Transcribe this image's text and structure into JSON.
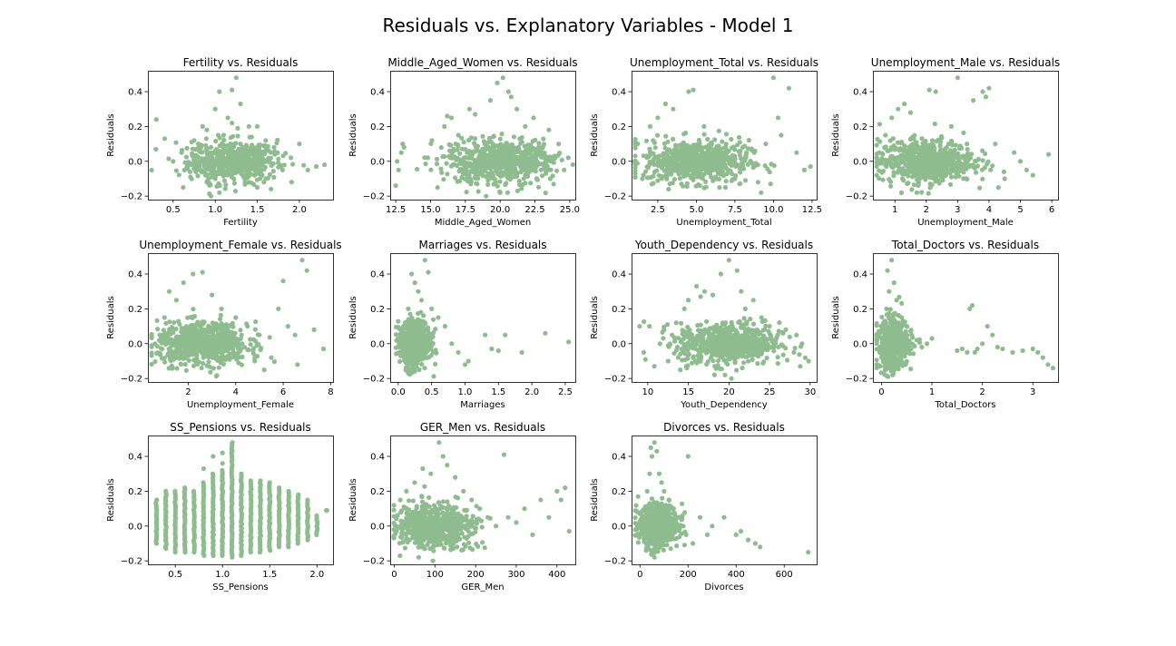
{
  "figure": {
    "suptitle": "Residuals vs. Explanatory Variables - Model 1"
  },
  "style": {
    "point_color": "#8fbc8f",
    "axis_color": "#000000"
  },
  "chart_data": [
    {
      "type": "scatter",
      "title": "Fertility vs. Residuals",
      "xlabel": "Fertility",
      "ylabel": "Residuals",
      "xlim": [
        0.2,
        2.4
      ],
      "ylim": [
        -0.22,
        0.52
      ],
      "xticks": [
        0.5,
        1.0,
        1.5,
        2.0
      ],
      "xtick_labels": [
        "0.5",
        "1.0",
        "1.5",
        "2.0"
      ],
      "yticks": [
        -0.2,
        0.0,
        0.2,
        0.4
      ],
      "ytick_labels": [
        "−0.2",
        "0.0",
        "0.2",
        "0.4"
      ],
      "x": [
        0.3,
        0.4,
        0.5,
        0.6,
        0.62,
        0.7,
        0.75,
        0.8,
        0.85,
        0.9,
        0.95,
        1.0,
        1.05,
        1.1,
        1.15,
        1.2,
        1.25,
        1.3,
        1.35,
        1.4,
        1.45,
        1.5,
        1.55,
        1.6,
        1.7,
        1.8,
        1.9,
        2.0,
        2.1,
        2.2,
        2.3,
        1.0,
        1.1,
        1.2,
        1.25,
        0.9,
        1.3,
        1.15,
        1.05,
        1.4,
        0.8,
        1.6,
        1.5,
        0.95,
        1.35
      ],
      "y": [
        0.24,
        0.13,
        0.0,
        0.05,
        -0.15,
        -0.06,
        0.12,
        0.0,
        0.2,
        -0.12,
        0.08,
        0.3,
        -0.18,
        0.15,
        0.25,
        0.41,
        0.48,
        0.1,
        -0.08,
        0.2,
        0.0,
        -0.15,
        0.05,
        -0.1,
        0.08,
        -0.05,
        0.02,
        0.1,
        -0.05,
        -0.03,
        -0.02,
        -0.1,
        0.05,
        0.22,
        -0.05,
        0.18,
        0.33,
        0.0,
        0.4,
        -0.12,
        0.1,
        0.12,
        0.2,
        -0.2,
        0.03
      ],
      "cloud": {
        "x_center": 1.2,
        "x_spread": 0.26,
        "y_center": 0.0,
        "y_spread": 0.06,
        "n": 550
      }
    },
    {
      "type": "scatter",
      "title": "Middle_Aged_Women vs. Residuals",
      "xlabel": "Middle_Aged_Women",
      "ylabel": "Residuals",
      "xlim": [
        12.1,
        25.4
      ],
      "ylim": [
        -0.22,
        0.52
      ],
      "xticks": [
        12.5,
        15.0,
        17.5,
        20.0,
        22.5,
        25.0
      ],
      "xtick_labels": [
        "12.5",
        "15.0",
        "17.5",
        "20.0",
        "22.5",
        "25.0"
      ],
      "yticks": [
        -0.2,
        0.0,
        0.2,
        0.4
      ],
      "ytick_labels": [
        "−0.2",
        "0.0",
        "0.2",
        "0.4"
      ],
      "x": [
        12.5,
        12.7,
        12.9,
        13.1,
        12.6,
        13.0,
        14.8,
        15.1,
        15.5,
        16.0,
        16.5,
        17.0,
        17.8,
        18.2,
        18.9,
        19.3,
        19.8,
        20.2,
        20.6,
        21.2,
        21.8,
        22.4,
        23.0,
        23.6,
        24.2,
        24.6,
        24.9,
        20.0,
        19.0,
        20.8,
        16.2,
        23.5
      ],
      "y": [
        -0.14,
        -0.05,
        0.05,
        0.08,
        0.0,
        0.1,
        0.02,
        0.12,
        -0.15,
        0.2,
        0.25,
        0.15,
        0.3,
        0.27,
        0.1,
        0.35,
        0.45,
        0.48,
        0.4,
        0.3,
        0.2,
        0.25,
        0.05,
        -0.1,
        0.1,
        -0.05,
        0.02,
        -0.18,
        -0.2,
        0.37,
        0.26,
        0.18
      ],
      "cloud": {
        "x_center": 20.0,
        "x_spread": 1.9,
        "y_center": 0.0,
        "y_spread": 0.06,
        "n": 650
      }
    },
    {
      "type": "scatter",
      "title": "Unemployment_Total vs. Residuals",
      "xlabel": "Unemployment_Total",
      "ylabel": "Residuals",
      "xlim": [
        0.8,
        12.8
      ],
      "ylim": [
        -0.22,
        0.52
      ],
      "xticks": [
        2.5,
        5.0,
        7.5,
        10.0,
        12.5
      ],
      "xtick_labels": [
        "2.5",
        "5.0",
        "7.5",
        "10.0",
        "12.5"
      ],
      "yticks": [
        -0.2,
        0.0,
        0.2,
        0.4
      ],
      "ytick_labels": [
        "−0.2",
        "0.0",
        "0.2",
        "0.4"
      ],
      "x": [
        1.0,
        1.2,
        1.5,
        2.0,
        2.5,
        3.0,
        3.5,
        4.5,
        4.8,
        5.5,
        6.0,
        6.5,
        7.0,
        7.5,
        8.0,
        8.5,
        9.0,
        9.5,
        10.0,
        10.5,
        11.0,
        11.5,
        12.0,
        12.4,
        10.3,
        9.2,
        8.8,
        7.8,
        3.2,
        2.2
      ],
      "y": [
        0.0,
        0.1,
        -0.1,
        0.2,
        0.25,
        0.33,
        0.3,
        0.4,
        0.41,
        0.2,
        0.1,
        -0.15,
        0.05,
        -0.1,
        0.08,
        0.0,
        -0.12,
        0.1,
        0.48,
        0.15,
        0.42,
        0.05,
        -0.05,
        -0.03,
        0.25,
        -0.18,
        0.06,
        -0.13,
        -0.16,
        0.12
      ],
      "cloud": {
        "x_center": 5.0,
        "x_spread": 1.7,
        "y_center": 0.0,
        "y_spread": 0.06,
        "n": 650
      }
    },
    {
      "type": "scatter",
      "title": "Unemployment_Male vs. Residuals",
      "xlabel": "Unemployment_Male",
      "ylabel": "Residuals",
      "xlim": [
        0.3,
        6.2
      ],
      "ylim": [
        -0.22,
        0.52
      ],
      "xticks": [
        1,
        2,
        3,
        4,
        5,
        6
      ],
      "xtick_labels": [
        "1",
        "2",
        "3",
        "4",
        "5",
        "6"
      ],
      "yticks": [
        -0.2,
        0.0,
        0.2,
        0.4
      ],
      "ytick_labels": [
        "−0.2",
        "0.0",
        "0.2",
        "0.4"
      ],
      "x": [
        0.5,
        0.7,
        0.9,
        1.1,
        1.3,
        1.5,
        2.1,
        2.3,
        2.8,
        3.0,
        3.3,
        3.5,
        3.8,
        4.0,
        4.2,
        4.5,
        4.8,
        5.0,
        5.2,
        5.4,
        5.9,
        3.9,
        4.3,
        1.7
      ],
      "y": [
        0.05,
        0.15,
        0.25,
        0.3,
        0.33,
        0.28,
        0.41,
        0.4,
        0.2,
        0.48,
        0.1,
        0.35,
        0.4,
        0.42,
        0.1,
        -0.1,
        0.05,
        0.0,
        -0.05,
        -0.08,
        0.04,
        0.37,
        -0.15,
        -0.18
      ],
      "cloud": {
        "x_center": 2.0,
        "x_spread": 0.75,
        "y_center": 0.0,
        "y_spread": 0.06,
        "n": 650
      }
    },
    {
      "type": "scatter",
      "title": "Unemployment_Female vs. Residuals",
      "xlabel": "Unemployment_Female",
      "ylabel": "Residuals",
      "xlim": [
        0.3,
        8.1
      ],
      "ylim": [
        -0.22,
        0.52
      ],
      "xticks": [
        2,
        4,
        6,
        8
      ],
      "xtick_labels": [
        "2",
        "4",
        "6",
        "8"
      ],
      "yticks": [
        -0.2,
        0.0,
        0.2,
        0.4
      ],
      "ytick_labels": [
        "−0.2",
        "0.0",
        "0.2",
        "0.4"
      ],
      "x": [
        0.6,
        0.8,
        1.0,
        1.2,
        1.5,
        1.8,
        2.2,
        2.6,
        3.0,
        3.4,
        4.0,
        4.5,
        5.0,
        5.5,
        5.8,
        6.0,
        6.2,
        6.5,
        6.8,
        7.0,
        7.3,
        7.7,
        6.6,
        5.2,
        4.8
      ],
      "y": [
        0.0,
        0.05,
        0.15,
        0.3,
        0.25,
        0.35,
        0.4,
        0.41,
        0.28,
        0.2,
        0.15,
        0.1,
        0.05,
        -0.08,
        0.2,
        0.36,
        0.1,
        0.05,
        0.48,
        0.42,
        0.08,
        -0.03,
        -0.12,
        -0.15,
        -0.1
      ],
      "cloud": {
        "x_center": 2.6,
        "x_spread": 0.95,
        "y_center": 0.0,
        "y_spread": 0.06,
        "n": 650
      }
    },
    {
      "type": "scatter",
      "title": "Marriages vs. Residuals",
      "xlabel": "Marriages",
      "ylabel": "Residuals",
      "xlim": [
        -0.12,
        2.65
      ],
      "ylim": [
        -0.22,
        0.52
      ],
      "xticks": [
        0.0,
        0.5,
        1.0,
        1.5,
        2.0,
        2.5
      ],
      "xtick_labels": [
        "0.0",
        "0.5",
        "1.0",
        "1.5",
        "2.0",
        "2.5"
      ],
      "yticks": [
        -0.2,
        0.0,
        0.2,
        0.4
      ],
      "ytick_labels": [
        "−0.2",
        "0.0",
        "0.2",
        "0.4"
      ],
      "x": [
        0.05,
        0.1,
        0.15,
        0.2,
        0.25,
        0.3,
        0.35,
        0.4,
        0.5,
        0.6,
        0.7,
        0.8,
        0.9,
        1.0,
        1.05,
        1.3,
        1.4,
        1.5,
        1.6,
        1.85,
        2.2,
        2.55,
        0.45,
        0.15
      ],
      "y": [
        0.0,
        0.1,
        0.2,
        0.4,
        0.35,
        0.3,
        0.25,
        0.48,
        0.2,
        0.15,
        0.1,
        0.0,
        -0.05,
        -0.12,
        -0.1,
        0.05,
        -0.03,
        -0.04,
        0.05,
        -0.05,
        0.06,
        0.01,
        0.41,
        -0.17
      ],
      "cloud": {
        "x_center": 0.25,
        "x_spread": 0.11,
        "y_center": 0.0,
        "y_spread": 0.065,
        "n": 650
      }
    },
    {
      "type": "scatter",
      "title": "Youth_Dependency vs. Residuals",
      "xlabel": "Youth_Dependency",
      "ylabel": "Residuals",
      "xlim": [
        8.0,
        30.8
      ],
      "ylim": [
        -0.22,
        0.52
      ],
      "xticks": [
        10,
        15,
        20,
        25,
        30
      ],
      "xtick_labels": [
        "10",
        "15",
        "20",
        "25",
        "30"
      ],
      "yticks": [
        -0.2,
        0.0,
        0.2,
        0.4
      ],
      "ytick_labels": [
        "−0.2",
        "0.0",
        "0.2",
        "0.4"
      ],
      "x": [
        9.0,
        9.5,
        10.2,
        10.8,
        11.5,
        12.0,
        12.5,
        13.0,
        13.5,
        14.0,
        14.5,
        15.0,
        16.0,
        17.0,
        18.0,
        19.0,
        20.0,
        21.0,
        21.5,
        22.0,
        23.0,
        24.0,
        25.0,
        26.0,
        27.0,
        28.0,
        29.0,
        29.8,
        19.5,
        20.3,
        16.5,
        14.8
      ],
      "y": [
        0.1,
        -0.05,
        0.1,
        -0.13,
        0.0,
        0.08,
        -0.1,
        0.05,
        0.12,
        -0.15,
        0.2,
        0.25,
        0.33,
        0.3,
        0.28,
        0.4,
        0.48,
        0.42,
        0.3,
        0.2,
        0.25,
        0.15,
        0.1,
        0.05,
        0.08,
        -0.05,
        0.0,
        -0.1,
        -0.18,
        -0.2,
        0.27,
        -0.14
      ],
      "cloud": {
        "x_center": 20.0,
        "x_spread": 3.1,
        "y_center": 0.0,
        "y_spread": 0.06,
        "n": 650
      }
    },
    {
      "type": "scatter",
      "title": "Total_Doctors vs. Residuals",
      "xlabel": "Total_Doctors",
      "ylabel": "Residuals",
      "xlim": [
        -0.17,
        3.5
      ],
      "ylim": [
        -0.22,
        0.52
      ],
      "xticks": [
        0,
        1,
        2,
        3
      ],
      "xtick_labels": [
        "0",
        "1",
        "2",
        "3"
      ],
      "yticks": [
        -0.2,
        0.0,
        0.2,
        0.4
      ],
      "ytick_labels": [
        "−0.2",
        "0.0",
        "0.2",
        "0.4"
      ],
      "x": [
        0.05,
        0.1,
        0.15,
        0.2,
        0.25,
        0.3,
        0.4,
        0.5,
        0.6,
        0.7,
        0.8,
        0.9,
        1.0,
        1.5,
        1.6,
        1.7,
        1.75,
        1.8,
        1.85,
        1.9,
        2.0,
        2.1,
        2.2,
        2.3,
        2.4,
        2.6,
        2.8,
        3.0,
        3.1,
        3.2,
        3.3,
        3.4,
        0.12,
        0.22
      ],
      "y": [
        0.0,
        0.2,
        0.3,
        0.48,
        0.35,
        0.25,
        0.15,
        0.1,
        0.05,
        0.02,
        -0.02,
        0.0,
        0.03,
        -0.04,
        -0.03,
        -0.05,
        0.2,
        0.22,
        -0.05,
        -0.03,
        0.0,
        0.1,
        0.05,
        -0.02,
        -0.03,
        -0.05,
        -0.04,
        -0.03,
        -0.05,
        -0.08,
        -0.12,
        -0.14,
        0.42,
        -0.18
      ],
      "cloud": {
        "x_center": 0.22,
        "x_spread": 0.15,
        "y_center": 0.0,
        "y_spread": 0.07,
        "n": 600
      }
    },
    {
      "type": "scatter",
      "title": "SS_Pensions vs. Residuals",
      "xlabel": "SS_Pensions",
      "ylabel": "Residuals",
      "xlim": [
        0.21,
        2.17
      ],
      "ylim": [
        -0.22,
        0.52
      ],
      "xticks": [
        0.5,
        1.0,
        1.5,
        2.0
      ],
      "xtick_labels": [
        "0.5",
        "1.0",
        "1.5",
        "2.0"
      ],
      "yticks": [
        -0.2,
        0.0,
        0.2,
        0.4
      ],
      "ytick_labels": [
        "−0.2",
        "0.0",
        "0.2",
        "0.4"
      ],
      "columns": [
        0.3,
        0.4,
        0.5,
        0.6,
        0.7,
        0.8,
        0.9,
        1.0,
        1.1,
        1.2,
        1.3,
        1.4,
        1.5,
        1.6,
        1.7,
        1.8,
        1.9,
        2.0,
        2.1
      ],
      "column_ranges": [
        [
          -0.1,
          0.15
        ],
        [
          -0.13,
          0.2
        ],
        [
          -0.15,
          0.2
        ],
        [
          -0.15,
          0.22
        ],
        [
          -0.15,
          0.2
        ],
        [
          -0.17,
          0.25
        ],
        [
          -0.17,
          0.3
        ],
        [
          -0.17,
          0.32
        ],
        [
          -0.18,
          0.48
        ],
        [
          -0.17,
          0.3
        ],
        [
          -0.15,
          0.26
        ],
        [
          -0.15,
          0.26
        ],
        [
          -0.14,
          0.25
        ],
        [
          -0.12,
          0.22
        ],
        [
          -0.12,
          0.2
        ],
        [
          -0.1,
          0.18
        ],
        [
          -0.08,
          0.15
        ],
        [
          -0.05,
          0.06
        ],
        [
          0.09,
          0.09
        ]
      ],
      "x": [
        0.9,
        1.0,
        1.1,
        1.0,
        0.8
      ],
      "y": [
        0.4,
        0.42,
        0.43,
        0.36,
        0.33
      ]
    },
    {
      "type": "scatter",
      "title": "GER_Men vs. Residuals",
      "xlabel": "GER_Men",
      "ylabel": "Residuals",
      "xlim": [
        -10,
        445
      ],
      "ylim": [
        -0.22,
        0.52
      ],
      "xticks": [
        0,
        100,
        200,
        300,
        400
      ],
      "xtick_labels": [
        "0",
        "100",
        "200",
        "300",
        "400"
      ],
      "yticks": [
        -0.2,
        0.0,
        0.2,
        0.4
      ],
      "ytick_labels": [
        "−0.2",
        "0.0",
        "0.2",
        "0.4"
      ],
      "x": [
        5,
        15,
        30,
        50,
        70,
        90,
        110,
        130,
        150,
        170,
        190,
        210,
        230,
        250,
        270,
        280,
        300,
        320,
        340,
        360,
        380,
        400,
        410,
        420,
        430,
        120,
        95,
        60
      ],
      "y": [
        0.0,
        0.15,
        0.2,
        0.25,
        0.33,
        0.3,
        0.48,
        0.35,
        0.28,
        0.2,
        0.15,
        0.1,
        0.05,
        0.0,
        0.41,
        0.05,
        0.02,
        0.1,
        -0.05,
        0.15,
        0.05,
        0.2,
        0.15,
        0.22,
        -0.03,
        0.4,
        -0.2,
        -0.18
      ],
      "cloud": {
        "x_center": 100,
        "x_spread": 45,
        "y_center": 0.0,
        "y_spread": 0.06,
        "n": 650
      }
    },
    {
      "type": "scatter",
      "title": "Divorces vs. Residuals",
      "xlabel": "Divorces",
      "ylabel": "Residuals",
      "xlim": [
        -35,
        735
      ],
      "ylim": [
        -0.22,
        0.52
      ],
      "xticks": [
        0,
        200,
        400,
        600
      ],
      "xtick_labels": [
        "0",
        "200",
        "400",
        "600"
      ],
      "yticks": [
        -0.2,
        0.0,
        0.2,
        0.4
      ],
      "ytick_labels": [
        "−0.2",
        "0.0",
        "0.2",
        "0.4"
      ],
      "x": [
        10,
        20,
        30,
        40,
        50,
        60,
        70,
        80,
        90,
        100,
        120,
        140,
        160,
        180,
        200,
        220,
        250,
        280,
        300,
        350,
        400,
        420,
        450,
        480,
        500,
        700,
        60,
        45
      ],
      "y": [
        0.0,
        0.1,
        0.2,
        0.3,
        0.4,
        0.48,
        0.43,
        0.3,
        0.25,
        0.2,
        0.15,
        0.1,
        0.05,
        0.0,
        0.4,
        -0.1,
        0.05,
        -0.05,
        0.0,
        0.05,
        -0.05,
        -0.03,
        -0.08,
        -0.1,
        -0.12,
        -0.15,
        -0.18,
        0.45
      ],
      "cloud": {
        "x_center": 75,
        "x_spread": 40,
        "y_center": 0.0,
        "y_spread": 0.06,
        "n": 650
      }
    }
  ]
}
